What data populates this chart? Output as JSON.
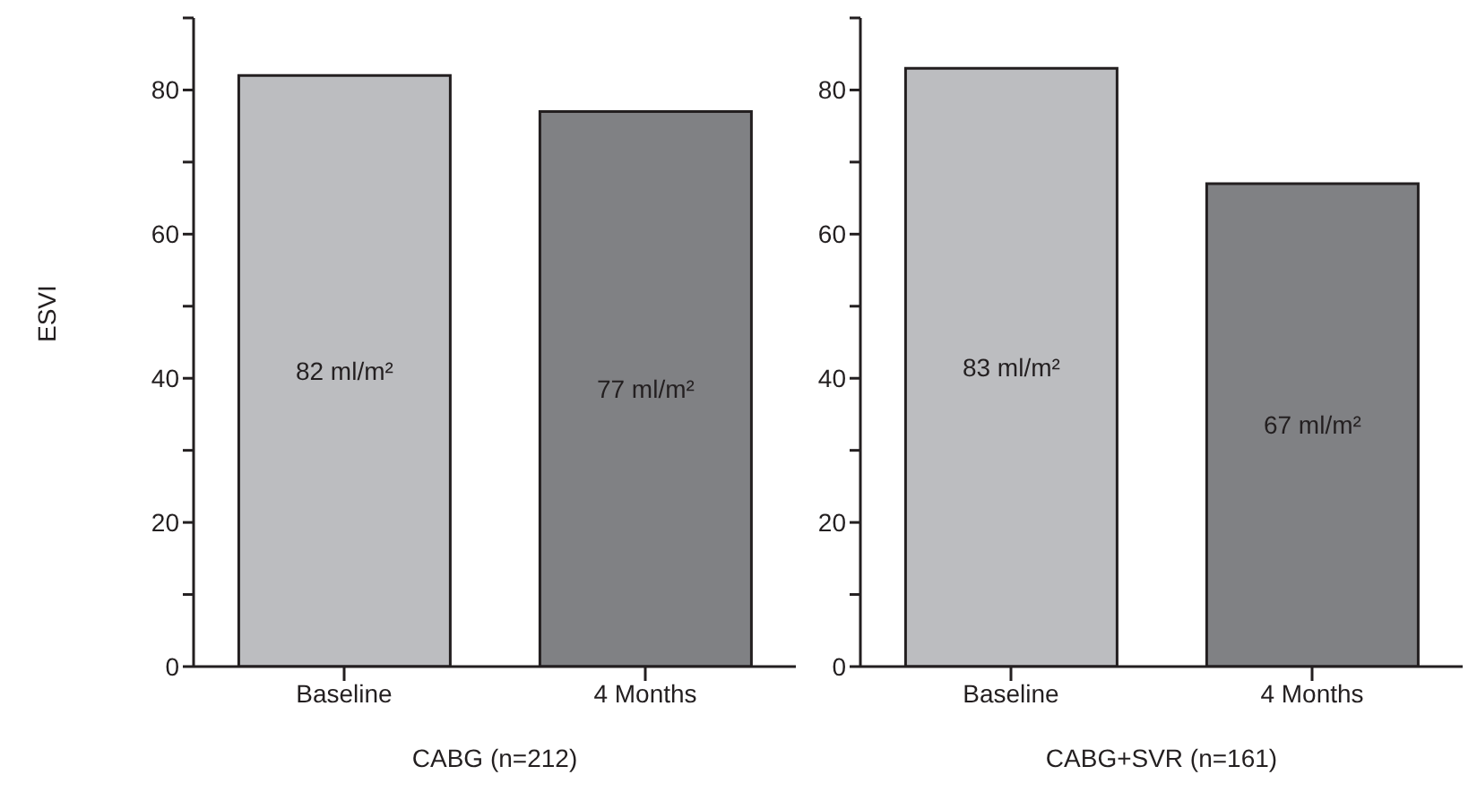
{
  "chart_data": [
    {
      "type": "bar",
      "ylabel": "ESVI",
      "xlabel": "CABG (n=212)",
      "categories": [
        "Baseline",
        "4 Months"
      ],
      "values": [
        82,
        77
      ],
      "colors": [
        "#bcbdc0",
        "#808184"
      ],
      "value_labels": [
        "82 ml/m²",
        "77 ml/m²"
      ],
      "ylim": [
        0,
        90
      ],
      "yticks": [
        0,
        {
          "value": 10,
          "label": null
        },
        20,
        {
          "value": 30,
          "label": null
        },
        40,
        {
          "value": 50,
          "label": null
        },
        60,
        {
          "value": 70,
          "label": null
        },
        80,
        {
          "value": 90,
          "label": null
        }
      ],
      "grid": false,
      "legend": false
    },
    {
      "type": "bar",
      "xlabel": "CABG+SVR (n=161)",
      "categories": [
        "Baseline",
        "4 Months"
      ],
      "values": [
        83,
        67
      ],
      "colors": [
        "#bcbdc0",
        "#808184"
      ],
      "value_labels": [
        "83 ml/m²",
        "67 ml/m²"
      ],
      "ylim": [
        0,
        90
      ],
      "yticks": [
        0,
        {
          "value": 10,
          "label": null
        },
        20,
        {
          "value": 30,
          "label": null
        },
        40,
        {
          "value": 50,
          "label": null
        },
        60,
        {
          "value": 70,
          "label": null
        },
        80,
        {
          "value": 90,
          "label": null
        }
      ],
      "grid": false,
      "legend": false
    }
  ]
}
